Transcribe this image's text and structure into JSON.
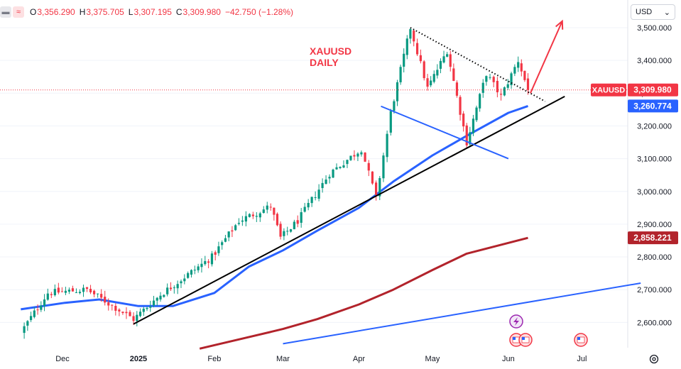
{
  "header": {
    "ohlc": [
      {
        "label": "O",
        "value": "3,356.290"
      },
      {
        "label": "H",
        "value": "3,375.705"
      },
      {
        "label": "L",
        "value": "3,307.195"
      },
      {
        "label": "C",
        "value": "3,309.980"
      }
    ],
    "change": "−42.750 (−1.28%)"
  },
  "currency": {
    "label": "USD"
  },
  "annotation": {
    "line1": "XAUUSD",
    "line2": "DAILY"
  },
  "colors": {
    "up": "#089981",
    "down": "#f23645",
    "ema50": "#2962ff",
    "ema200": "#b2232b",
    "trend": "#000000",
    "arrow": "#f23645"
  },
  "chart_data": {
    "type": "candlestick",
    "symbol": "XAUUSD",
    "timeframe": "Daily",
    "y_ticks": [
      "3,500.000",
      "3,400.000",
      "3,300.000",
      "3,200.000",
      "3,100.000",
      "3,000.000",
      "2,900.000",
      "2,800.000",
      "2,700.000",
      "2,600.000"
    ],
    "x_ticks": [
      "Dec",
      "2025",
      "Feb",
      "Mar",
      "Apr",
      "May",
      "Jun",
      "Jul"
    ],
    "price_labels": [
      {
        "name": "XAUUSD",
        "value": "3,309.980",
        "color": "#f23645"
      },
      {
        "value": "3,260.774",
        "color": "#2962ff"
      },
      {
        "value": "2,858.221",
        "color": "#b2232b"
      }
    ],
    "ohlc_keypoints": [
      [
        "2024-11-14",
        2570
      ],
      [
        "2024-11-25",
        2690
      ],
      [
        "2024-12-11",
        2700
      ],
      [
        "2024-12-30",
        2610
      ],
      [
        "2025-01-10",
        2685
      ],
      [
        "2025-01-31",
        2800
      ],
      [
        "2025-02-11",
        2910
      ],
      [
        "2025-02-24",
        2955
      ],
      [
        "2025-02-28",
        2858
      ],
      [
        "2025-03-07",
        2910
      ],
      [
        "2025-03-20",
        3055
      ],
      [
        "2025-04-02",
        3130
      ],
      [
        "2025-04-08",
        2980
      ],
      [
        "2025-04-14",
        3240
      ],
      [
        "2025-04-22",
        3500
      ],
      [
        "2025-04-29",
        3315
      ],
      [
        "2025-05-07",
        3430
      ],
      [
        "2025-05-15",
        3150
      ],
      [
        "2025-05-23",
        3360
      ],
      [
        "2025-05-29",
        3290
      ],
      [
        "2025-06-05",
        3400
      ],
      [
        "2025-06-09",
        3309.98
      ]
    ],
    "ema50": [
      [
        "2024-11-14",
        2640
      ],
      [
        "2024-12-02",
        2660
      ],
      [
        "2024-12-16",
        2670
      ],
      [
        "2025-01-01",
        2650
      ],
      [
        "2025-01-15",
        2650
      ],
      [
        "2025-02-01",
        2690
      ],
      [
        "2025-02-15",
        2770
      ],
      [
        "2025-03-01",
        2820
      ],
      [
        "2025-03-15",
        2880
      ],
      [
        "2025-04-01",
        2950
      ],
      [
        "2025-04-15",
        3030
      ],
      [
        "2025-05-01",
        3110
      ],
      [
        "2025-05-15",
        3170
      ],
      [
        "2025-06-01",
        3240
      ],
      [
        "2025-06-09",
        3260.774
      ]
    ],
    "ema200": [
      [
        "2025-01-26",
        2520
      ],
      [
        "2025-02-15",
        2555
      ],
      [
        "2025-03-01",
        2580
      ],
      [
        "2025-03-15",
        2610
      ],
      [
        "2025-04-01",
        2655
      ],
      [
        "2025-04-15",
        2700
      ],
      [
        "2025-05-01",
        2760
      ],
      [
        "2025-05-15",
        2810
      ],
      [
        "2025-06-09",
        2858.221
      ]
    ],
    "drawings": [
      {
        "kind": "trendline",
        "color": "#000000",
        "from": [
          "2024-12-30",
          2595
        ],
        "to": [
          "2025-06-24",
          3290
        ]
      },
      {
        "kind": "trendline",
        "color": "#2962ff",
        "from": [
          "2025-03-01",
          2535
        ],
        "to": [
          "2025-07-25",
          2720
        ]
      },
      {
        "kind": "trendline",
        "color": "#2962ff",
        "from": [
          "2025-04-10",
          3260
        ],
        "to": [
          "2025-06-01",
          3100
        ]
      },
      {
        "kind": "dotted-line",
        "color": "#000000",
        "from": [
          "2025-04-22",
          3500
        ],
        "to": [
          "2025-06-16",
          3275
        ]
      },
      {
        "kind": "arrow",
        "color": "#f23645",
        "from": [
          "2025-06-10",
          3300
        ],
        "to": [
          "2025-06-23",
          3520
        ]
      }
    ]
  }
}
